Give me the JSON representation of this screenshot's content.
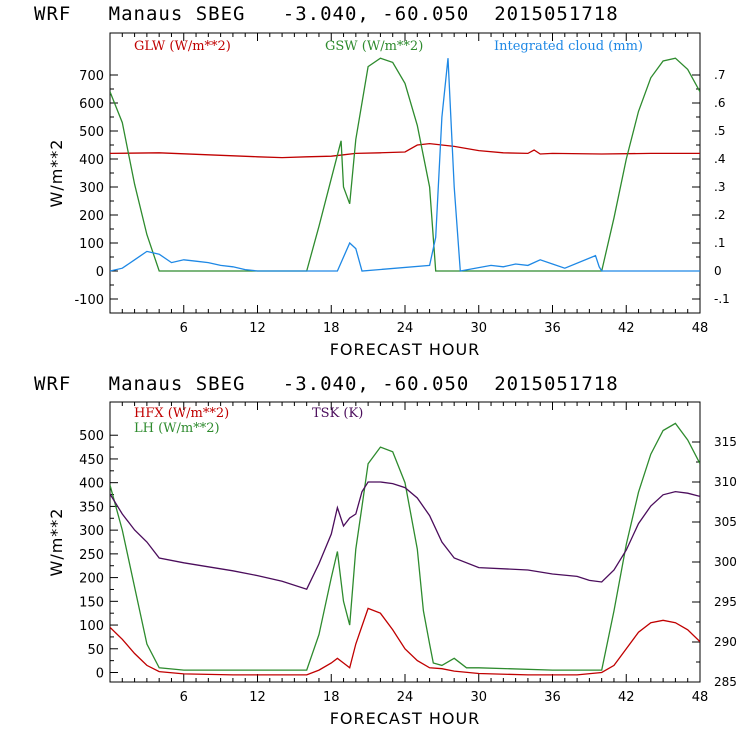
{
  "chart_data": [
    {
      "type": "line",
      "title": "WRF   Manaus SBEG   -3.040, -60.050  2015051718",
      "xlabel": "FORECAST HOUR",
      "ylabel": "W/m**2",
      "xlim": [
        0,
        48
      ],
      "ylim": [
        -150,
        850
      ],
      "y2lim": [
        -0.15,
        0.85
      ],
      "xticks": [
        "6",
        "12",
        "18",
        "24",
        "30",
        "36",
        "42",
        "48"
      ],
      "yticks": [
        "-100",
        "0",
        "100",
        "200",
        "300",
        "400",
        "500",
        "600",
        "700"
      ],
      "y2ticks": [
        "-.1",
        "0",
        ".1",
        ".2",
        ".3",
        ".4",
        ".5",
        ".6",
        ".7"
      ],
      "series": [
        {
          "name": "GLW (W/m**2)",
          "color": "#c00000",
          "axis": "left",
          "x": [
            0,
            4,
            8,
            12,
            14,
            16,
            18,
            19,
            20,
            22,
            24,
            25,
            26,
            28,
            30,
            32,
            34,
            34.5,
            35,
            36,
            40,
            44,
            48
          ],
          "y": [
            420,
            422,
            415,
            408,
            405,
            408,
            410,
            415,
            420,
            422,
            425,
            450,
            455,
            445,
            430,
            422,
            420,
            432,
            418,
            420,
            418,
            420,
            420
          ]
        },
        {
          "name": "GSW (W/m**2)",
          "color": "#2e8b2e",
          "axis": "left",
          "x": [
            0,
            1,
            2,
            3,
            4,
            16,
            17,
            18,
            18.8,
            19,
            19.5,
            20,
            21,
            22,
            23,
            24,
            25,
            26,
            26.5,
            40,
            41,
            42,
            43,
            44,
            45,
            46,
            47,
            48
          ],
          "y": [
            640,
            530,
            310,
            130,
            0,
            0,
            160,
            330,
            465,
            300,
            240,
            470,
            730,
            760,
            745,
            670,
            520,
            300,
            0,
            0,
            190,
            400,
            570,
            690,
            750,
            760,
            720,
            640
          ]
        },
        {
          "name": "Integrated cloud (mm)",
          "color": "#1e88e5",
          "axis": "right",
          "x": [
            0,
            1,
            2,
            3,
            4,
            5,
            6,
            7,
            8,
            9,
            10,
            11,
            12,
            18.5,
            19.5,
            20,
            20.5,
            26,
            26.5,
            27,
            27.5,
            28,
            28.5,
            31,
            32,
            33,
            34,
            35,
            36,
            37,
            39.5,
            39.8,
            40,
            41,
            48
          ],
          "y": [
            0,
            0.01,
            0.04,
            0.07,
            0.06,
            0.03,
            0.04,
            0.035,
            0.03,
            0.02,
            0.015,
            0.005,
            0,
            0,
            0.1,
            0.08,
            0,
            0.02,
            0.12,
            0.55,
            0.76,
            0.3,
            0,
            0.02,
            0.015,
            0.025,
            0.02,
            0.04,
            0.025,
            0.01,
            0.055,
            0.015,
            0,
            0,
            0
          ]
        }
      ]
    },
    {
      "type": "line",
      "title": "WRF   Manaus SBEG   -3.040, -60.050  2015051718",
      "xlabel": "FORECAST HOUR",
      "ylabel": "W/m**2",
      "xlim": [
        0,
        48
      ],
      "ylim": [
        -20,
        570
      ],
      "y2lim": [
        285,
        320
      ],
      "xticks": [
        "6",
        "12",
        "18",
        "24",
        "30",
        "36",
        "42",
        "48"
      ],
      "yticks": [
        "0",
        "50",
        "100",
        "150",
        "200",
        "250",
        "300",
        "350",
        "400",
        "450",
        "500"
      ],
      "y2ticks": [
        "285",
        "290",
        "295",
        "300",
        "305",
        "310",
        "315"
      ],
      "series": [
        {
          "name": "HFX (W/m**2)",
          "color": "#c00000",
          "axis": "left",
          "x": [
            0,
            1,
            2,
            3,
            4,
            6,
            10,
            14,
            16,
            17,
            18,
            18.5,
            19,
            19.5,
            20,
            21,
            22,
            23,
            24,
            25,
            26,
            27,
            28,
            30,
            34,
            38,
            40,
            41,
            42,
            43,
            44,
            45,
            46,
            47,
            48
          ],
          "y": [
            95,
            70,
            40,
            15,
            2,
            -3,
            -5,
            -5,
            -5,
            5,
            20,
            30,
            20,
            10,
            60,
            135,
            125,
            90,
            50,
            25,
            10,
            8,
            3,
            -2,
            -5,
            -5,
            0,
            15,
            50,
            85,
            105,
            110,
            105,
            90,
            65
          ]
        },
        {
          "name": "LH (W/m**2)",
          "color": "#2e8b2e",
          "axis": "left",
          "x": [
            0,
            1,
            2,
            3,
            4,
            6,
            12,
            16,
            17,
            18,
            18.5,
            19,
            19.5,
            20,
            20.5,
            21,
            22,
            23,
            24,
            25,
            25.5,
            26,
            26.3,
            27,
            28,
            29,
            30,
            36,
            40,
            41,
            42,
            43,
            44,
            45,
            46,
            47,
            48
          ],
          "y": [
            395,
            300,
            180,
            60,
            10,
            5,
            5,
            5,
            80,
            200,
            255,
            150,
            100,
            260,
            350,
            440,
            475,
            465,
            400,
            260,
            130,
            60,
            20,
            15,
            30,
            10,
            10,
            5,
            5,
            130,
            270,
            380,
            460,
            510,
            525,
            490,
            440
          ]
        },
        {
          "name": "TSK (K)",
          "color": "#4b0d5c",
          "axis": "right",
          "x": [
            0,
            1,
            2,
            3,
            4,
            6,
            8,
            10,
            12,
            14,
            16,
            17,
            18,
            18.5,
            19,
            19.5,
            20,
            20.5,
            21,
            22,
            23,
            24,
            25,
            26,
            27,
            28,
            30,
            34,
            36,
            38,
            39,
            40,
            41,
            42,
            43,
            44,
            45,
            46,
            47,
            48
          ],
          "y": [
            308.5,
            306,
            304,
            302.5,
            300.5,
            299.9,
            299.4,
            298.9,
            298.3,
            297.6,
            296.6,
            299.8,
            303.5,
            306.8,
            304.5,
            305.5,
            306,
            308.8,
            310,
            310,
            309.8,
            309.3,
            308,
            305.8,
            302.5,
            300.5,
            299.3,
            299,
            298.5,
            298.2,
            297.7,
            297.5,
            299,
            301.5,
            304.8,
            307,
            308.4,
            308.8,
            308.6,
            308.2
          ]
        }
      ]
    }
  ]
}
